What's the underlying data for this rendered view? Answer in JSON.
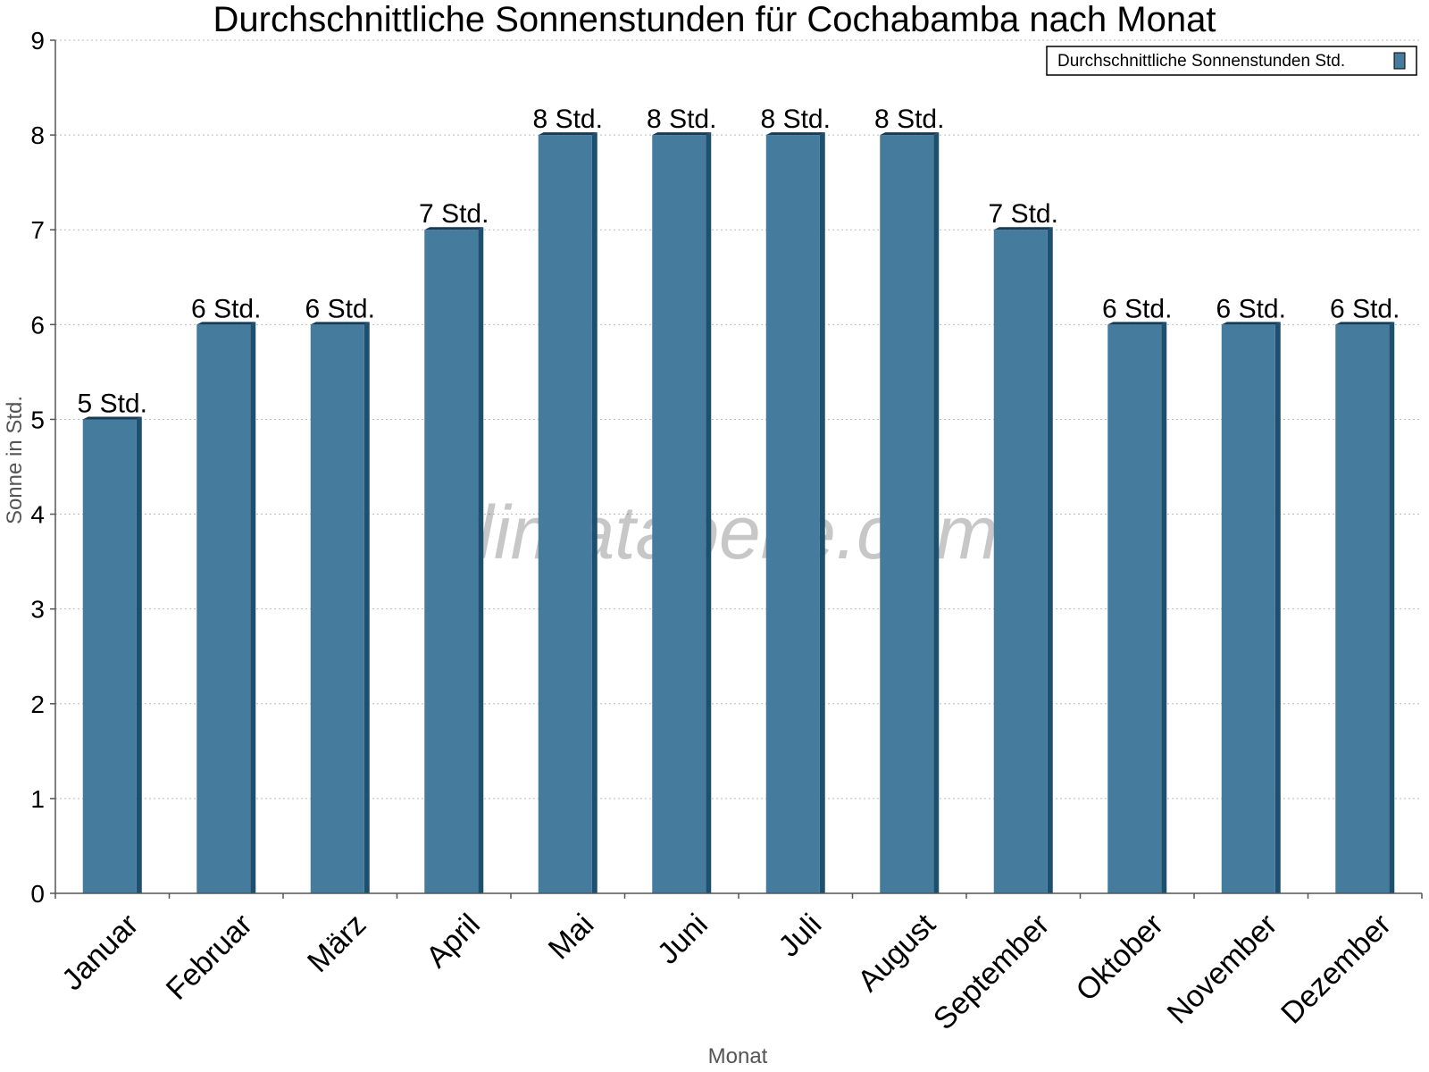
{
  "watermark": "klimatabelle.com",
  "colors": {
    "bar_face": "#457b9d",
    "bar_side": "#1d4f6e",
    "bar_top": "#123c58",
    "grid": "#bbbbbb",
    "axis": "#555555"
  },
  "chart_data": {
    "type": "bar",
    "title": "Durchschnittliche Sonnenstunden für Cochabamba nach Monat",
    "xlabel": "Monat",
    "ylabel": "Sonne in Std.",
    "ylim": [
      0,
      9
    ],
    "yticks": [
      "0",
      "1",
      "2",
      "3",
      "4",
      "5",
      "6",
      "7",
      "8",
      "9"
    ],
    "grid": true,
    "legend_position": "top-right",
    "categories": [
      "Januar",
      "Februar",
      "März",
      "April",
      "Mai",
      "Juni",
      "Juli",
      "August",
      "September",
      "Oktober",
      "November",
      "Dezember"
    ],
    "series": [
      {
        "name": "Durchschnittliche Sonnenstunden Std.",
        "values": [
          5,
          6,
          6,
          7,
          8,
          8,
          8,
          8,
          7,
          6,
          6,
          6
        ],
        "labels": [
          "5 Std.",
          "6 Std.",
          "6 Std.",
          "7 Std.",
          "8 Std.",
          "8 Std.",
          "8 Std.",
          "8 Std.",
          "7 Std.",
          "6 Std.",
          "6 Std.",
          "6 Std."
        ]
      }
    ]
  }
}
